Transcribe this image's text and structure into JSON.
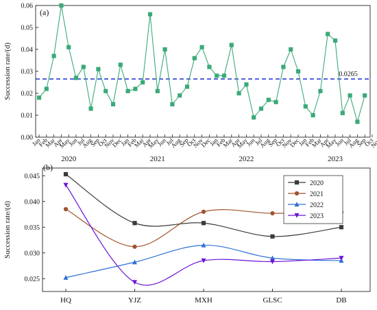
{
  "chart_data": [
    {
      "type": "line",
      "panel_label": "(a)",
      "ylabel": "Succession rate/(d)",
      "ylim": [
        0.0,
        0.06
      ],
      "yticks": [
        "0.00",
        "0.01",
        "0.02",
        "0.03",
        "0.04",
        "0.05",
        "0.06"
      ],
      "x_month_labels": [
        "Jan",
        "Feb",
        "Mar",
        "Apr",
        "May",
        "Jun",
        "Jul",
        "Aug",
        "Sep",
        "Oct",
        "Nov",
        "Dec",
        "Jan",
        "Feb",
        "Mar",
        "Apr",
        "May",
        "Jun",
        "Jul",
        "Aug",
        "Sep",
        "Oct",
        "Nov",
        "Dec",
        "Jan",
        "Feb",
        "Mar",
        "Apr",
        "May",
        "Jun",
        "Jul",
        "Aug",
        "Sep",
        "Oct",
        "Nov",
        "Dec",
        "Jan",
        "Feb",
        "Mar",
        "Apr",
        "May",
        "Jun",
        "Jul",
        "Aug",
        "Sep",
        "Oct",
        "Nov",
        "Dec"
      ],
      "year_labels": [
        "2020",
        "2021",
        "2022",
        "2023"
      ],
      "series": [
        {
          "color": "#3aaa78",
          "marker": "square",
          "values": [
            0.018,
            0.022,
            0.037,
            0.06,
            0.041,
            0.027,
            0.032,
            0.013,
            0.031,
            0.021,
            0.015,
            0.033,
            0.021,
            0.022,
            0.025,
            0.056,
            0.021,
            0.04,
            0.015,
            0.019,
            0.023,
            0.036,
            0.041,
            0.032,
            0.028,
            0.028,
            0.042,
            0.02,
            0.024,
            0.009,
            0.013,
            0.017,
            0.016,
            0.032,
            0.04,
            0.03,
            0.014,
            0.01,
            0.021,
            0.047,
            0.044,
            0.011,
            0.019,
            0.007,
            0.019
          ]
        }
      ],
      "reference_line": {
        "value": 0.0265,
        "label": "0.0265",
        "color": "#2d3ed1"
      }
    },
    {
      "type": "line",
      "panel_label": "(b)",
      "ylabel": "Succession rate/(d)",
      "ylim": [
        0.0225,
        0.0465
      ],
      "yticks": [
        "0.025",
        "0.030",
        "0.035",
        "0.040",
        "0.045"
      ],
      "categories": [
        "HQ",
        "YJZ",
        "MXH",
        "GLSC",
        "DB"
      ],
      "legend_position": "top-right",
      "series": [
        {
          "name": "2020",
          "color": "#3b3b3b",
          "marker": "square",
          "values": [
            0.0453,
            0.0358,
            0.0358,
            0.0332,
            0.035
          ]
        },
        {
          "name": "2021",
          "color": "#a0522d",
          "marker": "circle",
          "values": [
            0.0385,
            0.0312,
            0.038,
            0.0377,
            0.0379
          ]
        },
        {
          "name": "2022",
          "color": "#2f6fd6",
          "marker": "triangle-up",
          "values": [
            0.0252,
            0.0282,
            0.0315,
            0.029,
            0.0285
          ]
        },
        {
          "name": "2023",
          "color": "#6a14d6",
          "marker": "triangle-down",
          "values": [
            0.0432,
            0.0243,
            0.0285,
            0.0283,
            0.029
          ]
        }
      ]
    }
  ]
}
